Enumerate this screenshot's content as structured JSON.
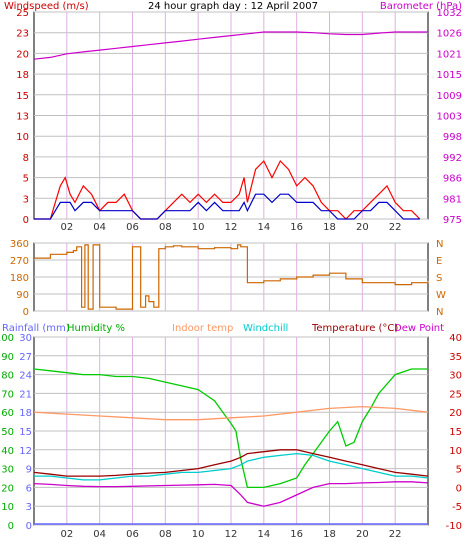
{
  "chart_data": [
    {
      "type": "line",
      "title": "24 hour graph day : 12 April 2007",
      "left_axis_label": "Windspeed (m/s)",
      "right_axis_label": "Barometer (hPa)",
      "x_ticks": [
        "02",
        "04",
        "06",
        "08",
        "10",
        "12",
        "14",
        "16",
        "18",
        "20",
        "22"
      ],
      "left_ticks": [
        0,
        3,
        5,
        8,
        10,
        13,
        15,
        18,
        20,
        23,
        25
      ],
      "right_ticks": [
        975,
        981,
        986,
        992,
        998,
        1003,
        1009,
        1015,
        1021,
        1026,
        1032
      ],
      "ylim_left": [
        0,
        25
      ],
      "ylim_right": [
        975,
        1032
      ],
      "grid": true,
      "series": [
        {
          "key": "gust",
          "axis": "left",
          "color": "#ff0000",
          "x": [
            0,
            0.5,
            1,
            1.3,
            1.6,
            1.9,
            2.2,
            2.5,
            3,
            3.5,
            4,
            4.5,
            5,
            5.5,
            6,
            6.5,
            7,
            7.5,
            8,
            8.5,
            9,
            9.5,
            10,
            10.5,
            11,
            11.5,
            12,
            12.5,
            12.8,
            13,
            13.5,
            14,
            14.5,
            15,
            15.5,
            16,
            16.5,
            17,
            17.5,
            18,
            18.5,
            19,
            19.5,
            20,
            20.5,
            21,
            21.5,
            22,
            22.5,
            23,
            23.5
          ],
          "y": [
            0,
            0,
            0,
            2,
            4,
            5,
            3,
            2,
            4,
            3,
            1,
            2,
            2,
            3,
            1,
            0,
            0,
            0,
            1,
            2,
            3,
            2,
            3,
            2,
            3,
            2,
            2,
            3,
            5,
            2,
            6,
            7,
            5,
            7,
            6,
            4,
            5,
            4,
            2,
            1,
            1,
            0,
            1,
            1,
            2,
            3,
            4,
            2,
            1,
            1,
            0
          ]
        },
        {
          "key": "wind",
          "axis": "left",
          "color": "#0000cc",
          "x": [
            0,
            0.5,
            1,
            1.3,
            1.6,
            1.9,
            2.2,
            2.5,
            3,
            3.5,
            4,
            4.5,
            5,
            5.5,
            6,
            6.5,
            7,
            7.5,
            8,
            8.5,
            9,
            9.5,
            10,
            10.5,
            11,
            11.5,
            12,
            12.5,
            12.8,
            13,
            13.5,
            14,
            14.5,
            15,
            15.5,
            16,
            16.5,
            17,
            17.5,
            18,
            18.5,
            19,
            19.5,
            20,
            20.5,
            21,
            21.5,
            22,
            22.5,
            23,
            23.5
          ],
          "y": [
            0,
            0,
            0,
            1,
            2,
            2,
            2,
            1,
            2,
            2,
            1,
            1,
            1,
            1,
            1,
            0,
            0,
            0,
            1,
            1,
            1,
            1,
            2,
            1,
            2,
            1,
            1,
            1,
            2,
            1,
            3,
            3,
            2,
            3,
            3,
            2,
            2,
            2,
            1,
            1,
            0,
            0,
            0,
            1,
            1,
            2,
            2,
            1,
            0,
            0,
            0
          ]
        },
        {
          "key": "barometer",
          "axis": "right",
          "color": "#cc00cc",
          "x": [
            0,
            1,
            2,
            3,
            4,
            5,
            6,
            7,
            8,
            9,
            10,
            11,
            12,
            13,
            14,
            15,
            16,
            17,
            18,
            19,
            20,
            21,
            22,
            23,
            24
          ],
          "y": [
            1019,
            1019.5,
            1020.5,
            1021,
            1021.5,
            1022,
            1022.5,
            1023,
            1023.5,
            1024,
            1024.5,
            1025,
            1025.5,
            1026,
            1026.5,
            1026.5,
            1026.5,
            1026.3,
            1026,
            1025.8,
            1025.8,
            1026.2,
            1026.5,
            1026.5,
            1026.5
          ]
        }
      ]
    },
    {
      "type": "line",
      "left_ticks": [
        0,
        90,
        180,
        270,
        360
      ],
      "right_ticks": [
        "N",
        "W",
        "S",
        "E",
        "N"
      ],
      "ylim": [
        0,
        360
      ],
      "grid": true,
      "series": [
        {
          "key": "direction",
          "color": "#cc6600",
          "x": [
            0,
            1,
            2,
            2.4,
            2.6,
            2.9,
            3.1,
            3.3,
            3.6,
            4,
            5,
            6,
            6.5,
            6.8,
            7,
            7.3,
            7.6,
            8,
            8.5,
            9,
            10,
            11,
            12,
            12.4,
            12.6,
            13,
            14,
            15,
            16,
            17,
            18,
            19,
            20,
            21,
            22,
            23,
            24
          ],
          "y": [
            280,
            300,
            310,
            320,
            340,
            20,
            350,
            10,
            350,
            20,
            10,
            340,
            20,
            80,
            50,
            20,
            330,
            340,
            345,
            340,
            330,
            335,
            330,
            350,
            340,
            150,
            160,
            170,
            180,
            190,
            200,
            170,
            150,
            150,
            140,
            150,
            160
          ]
        }
      ]
    },
    {
      "type": "line",
      "title_labels": [
        "Rainfall (mm)",
        "Humidity %",
        "Indoor temp",
        "Windchill",
        "Temperature (°C)",
        "Dew Point"
      ],
      "label_colors": [
        "#6666ff",
        "#00aa00",
        "#ff9966",
        "#00cccc",
        "#990000",
        "#cc00cc"
      ],
      "rain_ticks": [
        0,
        3,
        6,
        9,
        12,
        15,
        18,
        21,
        24,
        27,
        30
      ],
      "humidity_ticks": [
        0,
        10,
        20,
        30,
        40,
        50,
        60,
        70,
        80,
        90,
        100
      ],
      "temp_ticks": [
        -10,
        -5,
        0,
        5,
        10,
        15,
        20,
        25,
        30,
        35,
        40
      ],
      "ylim_temp": [
        -10,
        40
      ],
      "grid": true,
      "series": [
        {
          "key": "humidity",
          "axis": "hum",
          "color": "#00cc00",
          "x": [
            0,
            1,
            2,
            3,
            4,
            5,
            6,
            7,
            8,
            9,
            10,
            11,
            11.5,
            12,
            12.3,
            12.6,
            13,
            14,
            15,
            16,
            16.5,
            17,
            18,
            18.5,
            19,
            19.5,
            20,
            20.5,
            21,
            22,
            23,
            24
          ],
          "y": [
            83,
            82,
            81,
            80,
            80,
            79,
            79,
            78,
            76,
            74,
            72,
            66,
            60,
            54,
            50,
            35,
            20,
            20,
            22,
            25,
            32,
            38,
            50,
            55,
            42,
            44,
            55,
            62,
            70,
            80,
            83,
            83
          ]
        },
        {
          "key": "indoor",
          "axis": "temp",
          "color": "#ff9966",
          "x": [
            0,
            2,
            4,
            6,
            8,
            10,
            12,
            14,
            16,
            18,
            20,
            22,
            24
          ],
          "y": [
            20,
            19.5,
            19,
            18.5,
            18,
            18,
            18.5,
            19,
            20,
            21,
            21.5,
            21,
            20
          ]
        },
        {
          "key": "temperature",
          "axis": "temp",
          "color": "#990000",
          "x": [
            0,
            1,
            2,
            3,
            4,
            5,
            6,
            7,
            8,
            9,
            10,
            11,
            12,
            12.6,
            13,
            14,
            15,
            16,
            17,
            18,
            19,
            20,
            21,
            22,
            23,
            24
          ],
          "y": [
            4,
            3.5,
            3,
            3,
            3,
            3.2,
            3.5,
            3.8,
            4,
            4.5,
            5,
            6,
            7,
            8,
            9,
            9.5,
            10,
            10,
            9,
            8,
            7,
            6,
            5,
            4,
            3.5,
            3
          ]
        },
        {
          "key": "windchill",
          "axis": "temp",
          "color": "#00cccc",
          "x": [
            0,
            1,
            2,
            3,
            4,
            5,
            6,
            7,
            8,
            9,
            10,
            11,
            12,
            12.6,
            13,
            14,
            15,
            16,
            17,
            18,
            19,
            20,
            21,
            22,
            23,
            24
          ],
          "y": [
            3,
            3,
            2.5,
            2,
            2,
            2.5,
            3,
            3,
            3.5,
            4,
            4,
            4.5,
            5,
            6,
            7,
            8,
            8.5,
            9,
            8.5,
            7,
            6,
            5,
            4,
            3,
            3,
            2.5
          ]
        },
        {
          "key": "dewpoint",
          "axis": "temp",
          "color": "#cc00cc",
          "x": [
            0,
            1,
            2,
            3,
            4,
            5,
            6,
            7,
            8,
            9,
            10,
            11,
            12,
            12.6,
            13,
            14,
            15,
            16,
            17,
            18,
            19,
            20,
            21,
            22,
            23,
            24
          ],
          "y": [
            1,
            0.8,
            0.5,
            0.3,
            0.2,
            0.2,
            0.3,
            0.4,
            0.5,
            0.6,
            0.7,
            0.8,
            0.5,
            -2,
            -4,
            -5,
            -4,
            -2,
            0,
            1,
            1,
            1.2,
            1.3,
            1.5,
            1.5,
            1.2
          ]
        }
      ]
    }
  ],
  "axis_colors": {
    "windspeed": "#cc0000",
    "barometer": "#cc00cc",
    "direction_left": "#cc6600",
    "direction_right": "#cc6600",
    "rain": "#6666ff",
    "humidity": "#00aa00",
    "temperature": "#cc0000",
    "tick_x": "#333333"
  }
}
